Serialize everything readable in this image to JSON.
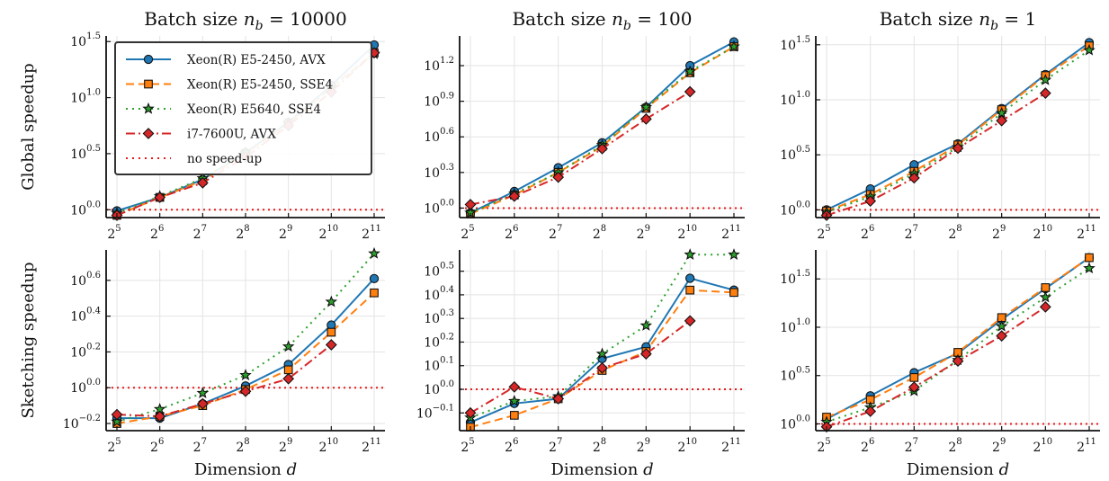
{
  "colors": {
    "xeon_e52450_avx": "#1f77b4",
    "xeon_e52450_sse4": "#ff7f0e",
    "xeon_e5640_sse4": "#2ca02c",
    "i7_7600u_avx": "#d62728",
    "baseline": "#e31a1c"
  },
  "row_labels": [
    "Global speedup",
    "Sketching speedup"
  ],
  "xlabel_prefix": "Dimension ",
  "xlabel_var": "d",
  "legend": {
    "entries": [
      {
        "label": "Xeon(R) E5-2450, AVX",
        "marker": "circle",
        "dash": "solid",
        "color_key": "xeon_e52450_avx"
      },
      {
        "label": "Xeon(R) E5-2450, SSE4",
        "marker": "square",
        "dash": "dashed",
        "color_key": "xeon_e52450_sse4"
      },
      {
        "label": "Xeon(R) E5640, SSE4",
        "marker": "star",
        "dash": "dotted",
        "color_key": "xeon_e5640_sse4"
      },
      {
        "label": "i7-7600U, AVX",
        "marker": "diamond",
        "dash": "dashdot",
        "color_key": "i7_7600u_avx"
      },
      {
        "label": "no speed-up",
        "marker": "none",
        "dash": "dotted",
        "color_key": "baseline"
      }
    ],
    "placement": "upper-left of first panel"
  },
  "chart_data": [
    {
      "type": "line",
      "row": 0,
      "col": 0,
      "title_prefix": "Batch size ",
      "title_var": "n",
      "title_sub": "b",
      "title_suffix": " = 10000",
      "x": [
        5,
        6,
        7,
        8,
        9,
        10,
        11
      ],
      "x_tick_base": "2",
      "x_scale": "log2",
      "y_scale": "log10",
      "ylim": [
        -0.07,
        1.55
      ],
      "y_tick_base": "10",
      "yticks": [
        0.0,
        0.5,
        1.0,
        1.5
      ],
      "ytick_labels": [
        "0.0",
        "0.5",
        "1.0",
        "1.5"
      ],
      "grid": true,
      "baseline": 0.0,
      "series": [
        {
          "name": "Xeon(R) E5-2450, AVX",
          "values": [
            -0.01,
            0.11,
            0.27,
            0.51,
            0.78,
            1.11,
            1.47
          ]
        },
        {
          "name": "Xeon(R) E5-2450, SSE4",
          "values": [
            -0.05,
            0.11,
            0.26,
            0.5,
            0.77,
            1.09,
            1.4
          ]
        },
        {
          "name": "Xeon(R) E5640, SSE4",
          "values": [
            -0.03,
            0.12,
            0.28,
            0.51,
            0.77,
            1.09,
            1.39
          ]
        },
        {
          "name": "i7-7600U, AVX",
          "values": [
            -0.05,
            0.11,
            0.24,
            0.47,
            0.75,
            1.05,
            1.4
          ]
        }
      ]
    },
    {
      "type": "line",
      "row": 0,
      "col": 1,
      "title_prefix": "Batch size ",
      "title_var": "n",
      "title_sub": "b",
      "title_suffix": " = 100",
      "x": [
        5,
        6,
        7,
        8,
        9,
        10,
        11
      ],
      "x_tick_base": "2",
      "x_scale": "log2",
      "y_scale": "log10",
      "ylim": [
        -0.08,
        1.45
      ],
      "y_tick_base": "10",
      "yticks": [
        0.0,
        0.3,
        0.6,
        0.9,
        1.2
      ],
      "ytick_labels": [
        "0.0",
        "0.3",
        "0.6",
        "0.9",
        "1.2"
      ],
      "grid": true,
      "baseline": 0.0,
      "series": [
        {
          "name": "Xeon(R) E5-2450, AVX",
          "values": [
            -0.04,
            0.14,
            0.34,
            0.55,
            0.85,
            1.2,
            1.4
          ]
        },
        {
          "name": "Xeon(R) E5-2450, SSE4",
          "values": [
            -0.05,
            0.11,
            0.3,
            0.52,
            0.84,
            1.14,
            1.36
          ]
        },
        {
          "name": "Xeon(R) E5640, SSE4",
          "values": [
            -0.04,
            0.12,
            0.3,
            0.53,
            0.85,
            1.15,
            1.36
          ]
        },
        {
          "name": "i7-7600U, AVX",
          "values": [
            0.03,
            0.1,
            0.26,
            0.5,
            0.75,
            0.98,
            null
          ]
        }
      ]
    },
    {
      "type": "line",
      "row": 0,
      "col": 2,
      "title_prefix": "Batch size ",
      "title_var": "n",
      "title_sub": "b",
      "title_suffix": " = 1",
      "x": [
        5,
        6,
        7,
        8,
        9,
        10,
        11
      ],
      "x_tick_base": "2",
      "x_scale": "log2",
      "y_scale": "log10",
      "ylim": [
        -0.07,
        1.58
      ],
      "y_tick_base": "10",
      "yticks": [
        0.0,
        0.5,
        1.0,
        1.5
      ],
      "ytick_labels": [
        "0.0",
        "0.5",
        "1.0",
        "1.5"
      ],
      "grid": true,
      "baseline": 0.0,
      "series": [
        {
          "name": "Xeon(R) E5-2450, AVX",
          "values": [
            0.0,
            0.19,
            0.41,
            0.6,
            0.92,
            1.23,
            1.52
          ]
        },
        {
          "name": "Xeon(R) E5-2450, SSE4",
          "values": [
            -0.01,
            0.14,
            0.35,
            0.59,
            0.91,
            1.22,
            1.49
          ]
        },
        {
          "name": "Xeon(R) E5640, SSE4",
          "values": [
            -0.02,
            0.12,
            0.33,
            0.57,
            0.88,
            1.18,
            1.45
          ]
        },
        {
          "name": "i7-7600U, AVX",
          "values": [
            -0.05,
            0.08,
            0.29,
            0.56,
            0.81,
            1.06,
            null
          ]
        }
      ]
    },
    {
      "type": "line",
      "row": 1,
      "col": 0,
      "x": [
        5,
        6,
        7,
        8,
        9,
        10,
        11
      ],
      "x_tick_base": "2",
      "x_scale": "log2",
      "y_scale": "log10",
      "ylim": [
        -0.24,
        0.77
      ],
      "y_tick_base": "10",
      "yticks": [
        -0.2,
        0.0,
        0.2,
        0.4,
        0.6
      ],
      "ytick_labels": [
        "−0.2",
        "0.0",
        "0.2",
        "0.4",
        "0.6"
      ],
      "grid": true,
      "baseline": 0.0,
      "series": [
        {
          "name": "Xeon(R) E5-2450, AVX",
          "values": [
            -0.17,
            -0.17,
            -0.09,
            0.01,
            0.13,
            0.35,
            0.61
          ]
        },
        {
          "name": "Xeon(R) E5-2450, SSE4",
          "values": [
            -0.2,
            -0.16,
            -0.1,
            -0.01,
            0.1,
            0.31,
            0.53
          ]
        },
        {
          "name": "Xeon(R) E5640, SSE4",
          "values": [
            -0.19,
            -0.12,
            -0.03,
            0.07,
            0.23,
            0.48,
            0.75
          ]
        },
        {
          "name": "i7-7600U, AVX",
          "values": [
            -0.15,
            -0.16,
            -0.09,
            -0.02,
            0.05,
            0.24,
            null
          ]
        }
      ]
    },
    {
      "type": "line",
      "row": 1,
      "col": 1,
      "x": [
        5,
        6,
        7,
        8,
        9,
        10,
        11
      ],
      "x_tick_base": "2",
      "x_scale": "log2",
      "y_scale": "log10",
      "ylim": [
        -0.175,
        0.59
      ],
      "y_tick_base": "10",
      "yticks": [
        -0.1,
        0.0,
        0.1,
        0.2,
        0.3,
        0.4,
        0.5
      ],
      "ytick_labels": [
        "−0.1",
        "0.0",
        "0.1",
        "0.2",
        "0.3",
        "0.4",
        "0.5"
      ],
      "grid": true,
      "baseline": 0.0,
      "series": [
        {
          "name": "Xeon(R) E5-2450, AVX",
          "values": [
            -0.14,
            -0.06,
            -0.04,
            0.13,
            0.18,
            0.47,
            0.42
          ]
        },
        {
          "name": "Xeon(R) E5-2450, SSE4",
          "values": [
            -0.16,
            -0.11,
            -0.04,
            0.08,
            0.16,
            0.42,
            0.41
          ]
        },
        {
          "name": "Xeon(R) E5640, SSE4",
          "values": [
            -0.12,
            -0.05,
            -0.03,
            0.15,
            0.27,
            0.57,
            0.57
          ]
        },
        {
          "name": "i7-7600U, AVX",
          "values": [
            -0.1,
            0.01,
            -0.04,
            0.09,
            0.15,
            0.29,
            null
          ]
        }
      ]
    },
    {
      "type": "line",
      "row": 1,
      "col": 2,
      "x": [
        5,
        6,
        7,
        8,
        9,
        10,
        11
      ],
      "x_tick_base": "2",
      "x_scale": "log2",
      "y_scale": "log10",
      "ylim": [
        -0.07,
        1.8
      ],
      "y_tick_base": "10",
      "yticks": [
        0.0,
        0.5,
        1.0,
        1.5
      ],
      "ytick_labels": [
        "0.0",
        "0.5",
        "1.0",
        "1.5"
      ],
      "grid": true,
      "baseline": 0.0,
      "series": [
        {
          "name": "Xeon(R) E5-2450, AVX",
          "values": [
            0.05,
            0.29,
            0.53,
            0.73,
            1.08,
            1.4,
            1.72
          ]
        },
        {
          "name": "Xeon(R) E5-2450, SSE4",
          "values": [
            0.07,
            0.25,
            0.48,
            0.74,
            1.1,
            1.41,
            1.72
          ]
        },
        {
          "name": "Xeon(R) E5640, SSE4",
          "values": [
            0.02,
            0.17,
            0.34,
            0.66,
            1.01,
            1.31,
            1.61
          ]
        },
        {
          "name": "i7-7600U, AVX",
          "values": [
            -0.03,
            0.13,
            0.38,
            0.65,
            0.91,
            1.21,
            null
          ]
        }
      ]
    }
  ]
}
